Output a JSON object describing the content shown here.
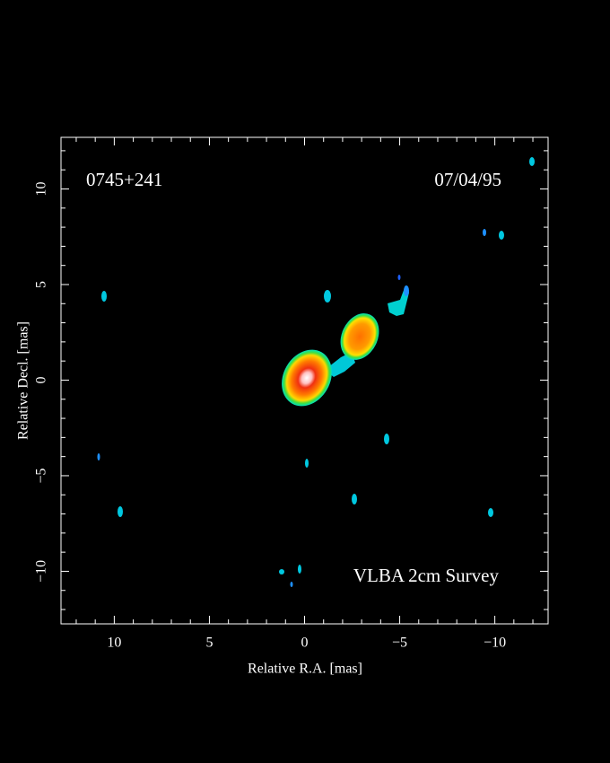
{
  "chart_data": {
    "type": "image",
    "source": "0745+241",
    "date": "07/04/95",
    "survey": "VLBA 2cm Survey",
    "xlabel": "Relative R.A. [mas]",
    "ylabel": "Relative Decl. [mas]",
    "xlim": [
      12.8,
      -12.8
    ],
    "ylim": [
      -12.75,
      12.7
    ],
    "xticks": [
      10,
      5,
      0,
      {
        "value": -5,
        "label": "−5"
      },
      {
        "value": -10,
        "label": "−10"
      }
    ],
    "yticks": [
      {
        "value": -10,
        "label": "−10"
      },
      {
        "value": -5,
        "label": "−5"
      },
      0,
      5,
      10
    ],
    "xminorticks": [
      12,
      11,
      9,
      8,
      7,
      6,
      4,
      3,
      2,
      1,
      -1,
      -2,
      -3,
      -4,
      -6,
      -7,
      -8,
      -9,
      -11,
      -12
    ],
    "yminorticks": [
      -12,
      -11,
      -9,
      -8,
      -7,
      -6,
      -4,
      -3,
      -2,
      -1,
      1,
      2,
      3,
      4,
      6,
      7,
      8,
      9,
      11,
      12
    ]
  }
}
